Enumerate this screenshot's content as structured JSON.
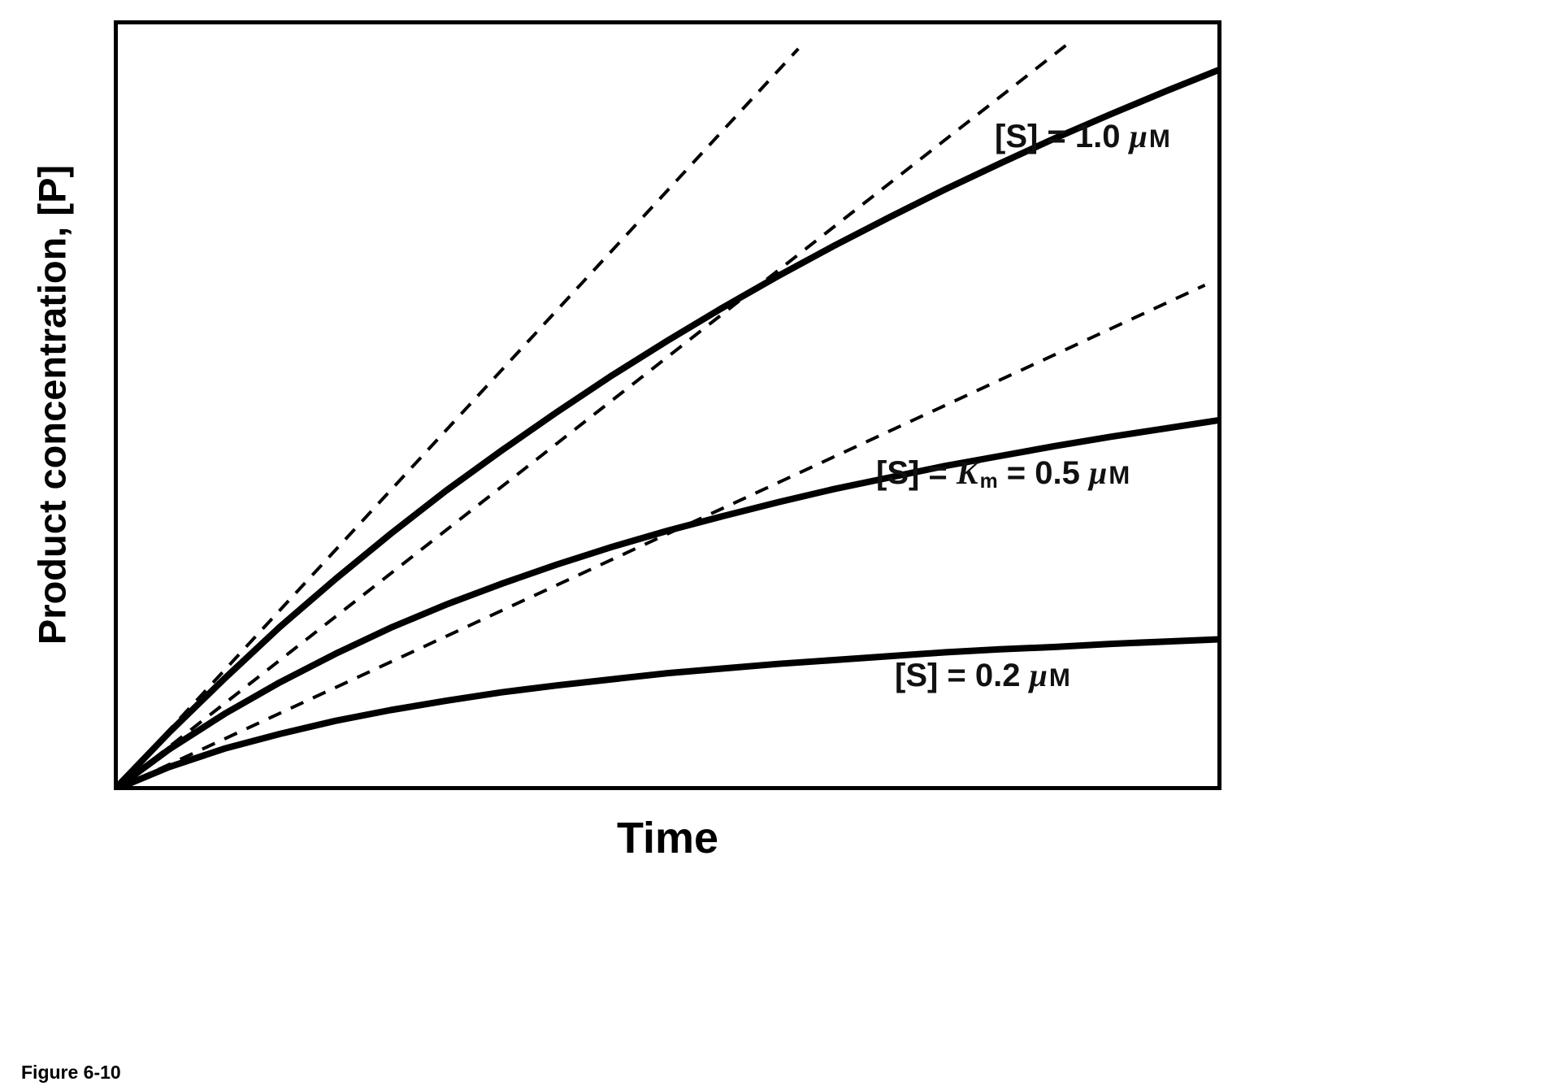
{
  "figure": {
    "caption": "Figure 6-10"
  },
  "chart_data": {
    "type": "line",
    "title": "",
    "xlabel": "Time",
    "ylabel": "Product concentration, [P]",
    "grid": false,
    "frame": "box",
    "x_axis": {
      "ticks": [],
      "range_normalized": [
        0,
        1
      ]
    },
    "y_axis": {
      "ticks": [],
      "range_normalized": [
        0,
        1
      ]
    },
    "colors": {
      "stroke": "#000000",
      "background": "#ffffff"
    },
    "series": [
      {
        "name": "[S] = 1.0 μM progress curve",
        "style": "solid",
        "points": [
          [
            0,
            0
          ],
          [
            0.05,
            0.075
          ],
          [
            0.1,
            0.145
          ],
          [
            0.15,
            0.212
          ],
          [
            0.2,
            0.274
          ],
          [
            0.25,
            0.333
          ],
          [
            0.3,
            0.389
          ],
          [
            0.35,
            0.441
          ],
          [
            0.4,
            0.491
          ],
          [
            0.45,
            0.539
          ],
          [
            0.5,
            0.584
          ],
          [
            0.55,
            0.627
          ],
          [
            0.6,
            0.668
          ],
          [
            0.65,
            0.707
          ],
          [
            0.7,
            0.744
          ],
          [
            0.75,
            0.78
          ],
          [
            0.8,
            0.814
          ],
          [
            0.85,
            0.847
          ],
          [
            0.9,
            0.878
          ],
          [
            0.95,
            0.908
          ],
          [
            1,
            0.937
          ]
        ]
      },
      {
        "name": "[S] = Km = 0.5 μM progress curve",
        "style": "solid",
        "points": [
          [
            0,
            0
          ],
          [
            0.05,
            0.053
          ],
          [
            0.1,
            0.099
          ],
          [
            0.15,
            0.14
          ],
          [
            0.2,
            0.177
          ],
          [
            0.25,
            0.211
          ],
          [
            0.3,
            0.241
          ],
          [
            0.35,
            0.268
          ],
          [
            0.4,
            0.293
          ],
          [
            0.45,
            0.316
          ],
          [
            0.5,
            0.337
          ],
          [
            0.55,
            0.356
          ],
          [
            0.6,
            0.374
          ],
          [
            0.65,
            0.391
          ],
          [
            0.7,
            0.406
          ],
          [
            0.75,
            0.421
          ],
          [
            0.8,
            0.434
          ],
          [
            0.85,
            0.447
          ],
          [
            0.9,
            0.459
          ],
          [
            0.95,
            0.47
          ],
          [
            1,
            0.481
          ]
        ]
      },
      {
        "name": "[S] = 0.2 μM progress curve",
        "style": "solid",
        "points": [
          [
            0,
            0
          ],
          [
            0.05,
            0.03
          ],
          [
            0.1,
            0.054
          ],
          [
            0.15,
            0.073
          ],
          [
            0.2,
            0.09
          ],
          [
            0.25,
            0.104
          ],
          [
            0.3,
            0.116
          ],
          [
            0.35,
            0.127
          ],
          [
            0.4,
            0.136
          ],
          [
            0.45,
            0.144
          ],
          [
            0.5,
            0.152
          ],
          [
            0.55,
            0.158
          ],
          [
            0.6,
            0.164
          ],
          [
            0.65,
            0.169
          ],
          [
            0.7,
            0.174
          ],
          [
            0.75,
            0.179
          ],
          [
            0.8,
            0.183
          ],
          [
            0.85,
            0.186
          ],
          [
            0.9,
            0.19
          ],
          [
            0.95,
            0.193
          ],
          [
            1,
            0.196
          ]
        ]
      },
      {
        "name": "initial-rate tangent, [S] = 1.0 μM",
        "style": "dashed",
        "points": [
          [
            0,
            0
          ],
          [
            0.618,
            0.963
          ]
        ]
      },
      {
        "name": "initial-rate tangent, [S] = 0.5 μM",
        "style": "dashed",
        "points": [
          [
            0,
            0
          ],
          [
            0.86,
            0.968
          ]
        ]
      },
      {
        "name": "initial-rate tangent, [S] = 0.2 μM",
        "style": "dashed",
        "points": [
          [
            0,
            0
          ],
          [
            0.985,
            0.656
          ]
        ]
      }
    ],
    "annotations": [
      {
        "label": "[S] = 1.0 μM",
        "x": 0.795,
        "y": 0.128,
        "segments": [
          {
            "t": "[S] = 1.0 "
          },
          {
            "t": "μ",
            "style": "italic"
          },
          {
            "t": "M",
            "style": "smallcap"
          }
        ]
      },
      {
        "label": "[S] = Km = 0.5 μM",
        "x": 0.688,
        "y": 0.565,
        "segments": [
          {
            "t": "[S] = "
          },
          {
            "t": "K",
            "style": "italic"
          },
          {
            "t": "m",
            "style": "sub"
          },
          {
            "t": " = 0.5 "
          },
          {
            "t": "μ",
            "style": "italic"
          },
          {
            "t": "M",
            "style": "smallcap"
          }
        ]
      },
      {
        "label": "[S] = 0.2 μM",
        "x": 0.705,
        "y": 0.828,
        "segments": [
          {
            "t": "[S] = 0.2 "
          },
          {
            "t": "μ",
            "style": "italic"
          },
          {
            "t": "M",
            "style": "smallcap"
          }
        ]
      }
    ]
  }
}
